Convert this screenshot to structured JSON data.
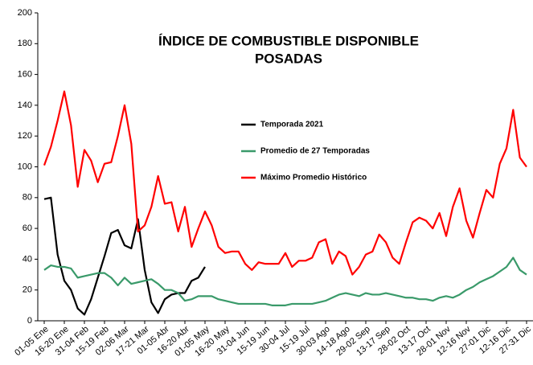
{
  "chart_data": {
    "type": "line",
    "title_lines": [
      "ÍNDICE DE COMBUSTIBLE DISPONIBLE",
      "POSADAS"
    ],
    "categories": [
      "01-05 Ene",
      null,
      null,
      "16-20 Ene",
      null,
      null,
      "31-04 Feb",
      null,
      null,
      "15-19 Feb",
      null,
      null,
      "02-06 Mar",
      null,
      null,
      "17-21 Mar",
      null,
      null,
      "01-05 Abr",
      null,
      null,
      "16-20 Abr",
      null,
      null,
      "01-05 May",
      null,
      null,
      "16-20 May",
      null,
      null,
      "31-04 Jun",
      null,
      null,
      "15-19 Jun",
      null,
      null,
      "30-04 Jul",
      null,
      null,
      "15-19 Jul",
      null,
      null,
      "30-03 Ago",
      null,
      null,
      "14-18 Ago",
      null,
      null,
      "29-02 Sep",
      null,
      null,
      "13-17 Sep",
      null,
      null,
      "28-02 Oct",
      null,
      null,
      "13-17 Oct",
      null,
      null,
      "28-01 Nov",
      null,
      null,
      "12-16 Nov",
      null,
      null,
      "27-01 Dic",
      null,
      null,
      "12-16 Dic",
      null,
      null,
      "27-31 Dic"
    ],
    "series": [
      {
        "name": "Temporada 2021",
        "color": "#000000",
        "values": [
          79,
          80,
          43,
          26,
          20,
          8,
          4,
          14,
          28,
          42,
          57,
          59,
          49,
          47,
          66,
          33,
          12,
          5,
          14,
          17,
          18,
          18,
          26,
          28,
          35,
          null,
          null,
          null,
          null,
          null,
          null,
          null,
          null,
          null,
          null,
          null,
          null,
          null,
          null,
          null,
          null,
          null,
          null,
          null,
          null,
          null,
          null,
          null,
          null,
          null,
          null,
          null,
          null,
          null,
          null,
          null,
          null,
          null,
          null,
          null,
          null,
          null,
          null,
          null,
          null,
          null,
          null,
          null,
          null,
          null,
          null,
          null,
          null
        ]
      },
      {
        "name": "Promedio de 27 Temporadas",
        "color": "#3a9a6a",
        "values": [
          33,
          36,
          35,
          35,
          34,
          28,
          29,
          30,
          31,
          31,
          28,
          23,
          28,
          24,
          25,
          26,
          27,
          24,
          20,
          20,
          18,
          13,
          14,
          16,
          16,
          16,
          14,
          13,
          12,
          11,
          11,
          11,
          11,
          11,
          10,
          10,
          10,
          11,
          11,
          11,
          11,
          12,
          13,
          15,
          17,
          18,
          17,
          16,
          18,
          17,
          17,
          18,
          17,
          16,
          15,
          15,
          14,
          14,
          13,
          15,
          16,
          15,
          17,
          20,
          22,
          25,
          27,
          29,
          32,
          35,
          41,
          33,
          30
        ]
      },
      {
        "name": "Máximo Promedio Histórico",
        "color": "#ff0000",
        "values": [
          101,
          113,
          130,
          149,
          127,
          87,
          111,
          104,
          90,
          102,
          103,
          120,
          140,
          115,
          58,
          62,
          74,
          94,
          76,
          77,
          58,
          74,
          48,
          60,
          71,
          62,
          48,
          44,
          45,
          45,
          37,
          33,
          38,
          37,
          37,
          37,
          44,
          35,
          39,
          39,
          41,
          51,
          53,
          37,
          45,
          42,
          30,
          35,
          43,
          45,
          56,
          51,
          41,
          37,
          51,
          64,
          67,
          65,
          60,
          70,
          55,
          74,
          86,
          65,
          54,
          70,
          85,
          80,
          102,
          112,
          137,
          106,
          100
        ]
      }
    ],
    "ylim": [
      0,
      200
    ],
    "yticks": [
      0,
      20,
      40,
      60,
      80,
      100,
      120,
      140,
      160,
      180,
      200
    ],
    "grid": false
  }
}
